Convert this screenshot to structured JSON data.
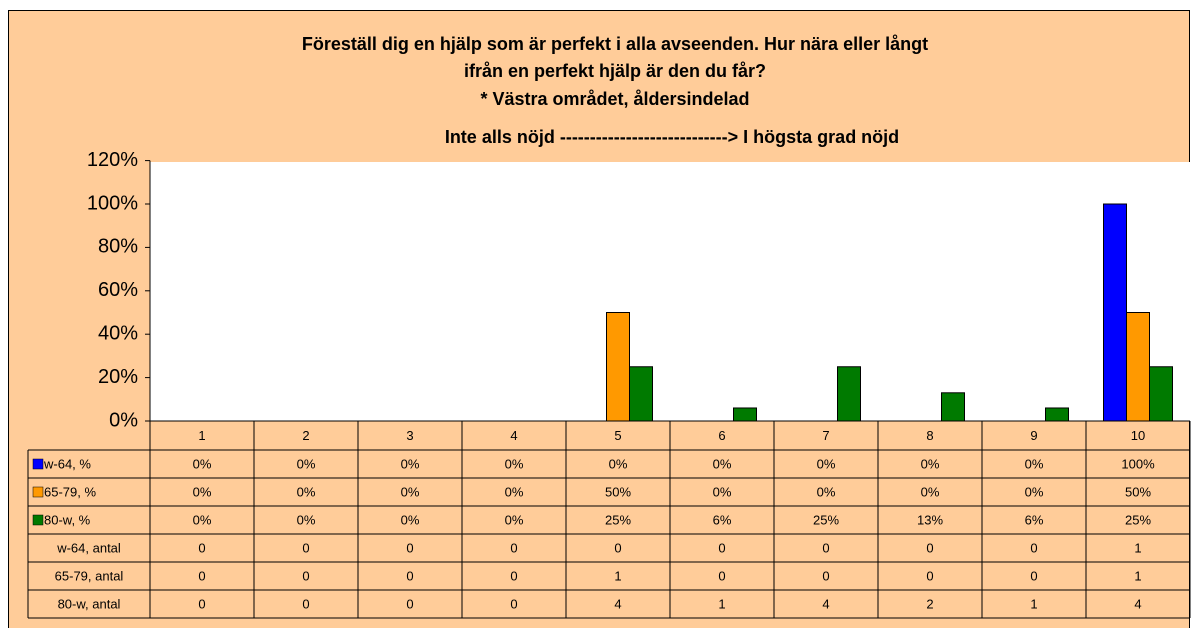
{
  "chart_data": {
    "type": "bar",
    "title": [
      "Föreställ dig en hjälp som är perfekt i alla avseenden. Hur nära eller långt",
      "ifrån en perfekt hjälp är den du får?",
      "* Västra området, åldersindelad"
    ],
    "subtitle": "Inte alls nöjd ----------------------------> I högsta grad nöjd",
    "categories": [
      "1",
      "2",
      "3",
      "4",
      "5",
      "6",
      "7",
      "8",
      "9",
      "10"
    ],
    "series": [
      {
        "name": "w-64, %",
        "color": "#0000FF",
        "values": [
          0,
          0,
          0,
          0,
          0,
          0,
          0,
          0,
          0,
          100
        ],
        "value_labels": [
          "0%",
          "0%",
          "0%",
          "0%",
          "0%",
          "0%",
          "0%",
          "0%",
          "0%",
          "100%"
        ]
      },
      {
        "name": "65-79, %",
        "color": "#FF9900",
        "values": [
          0,
          0,
          0,
          0,
          50,
          0,
          0,
          0,
          0,
          50
        ],
        "value_labels": [
          "0%",
          "0%",
          "0%",
          "0%",
          "50%",
          "0%",
          "0%",
          "0%",
          "0%",
          "50%"
        ]
      },
      {
        "name": "80-w, %",
        "color": "#007A00",
        "values": [
          0,
          0,
          0,
          0,
          25,
          6,
          25,
          13,
          6,
          25
        ],
        "value_labels": [
          "0%",
          "0%",
          "0%",
          "0%",
          "25%",
          "6%",
          "25%",
          "13%",
          "6%",
          "25%"
        ]
      }
    ],
    "count_rows": [
      {
        "name": "w-64, antal",
        "values": [
          0,
          0,
          0,
          0,
          0,
          0,
          0,
          0,
          0,
          1
        ]
      },
      {
        "name": "65-79, antal",
        "values": [
          0,
          0,
          0,
          0,
          1,
          0,
          0,
          0,
          0,
          1
        ]
      },
      {
        "name": "80-w, antal",
        "values": [
          0,
          0,
          0,
          0,
          4,
          1,
          4,
          2,
          1,
          4
        ]
      }
    ],
    "ylim": [
      0,
      120
    ],
    "yticks": [
      {
        "value": 0,
        "label": "0%"
      },
      {
        "value": 20,
        "label": "20%"
      },
      {
        "value": 40,
        "label": "40%"
      },
      {
        "value": 60,
        "label": "60%"
      },
      {
        "value": 80,
        "label": "80%"
      },
      {
        "value": 100,
        "label": "100%"
      },
      {
        "value": 120,
        "label": "120%"
      }
    ],
    "grid": false,
    "data_table": true
  }
}
